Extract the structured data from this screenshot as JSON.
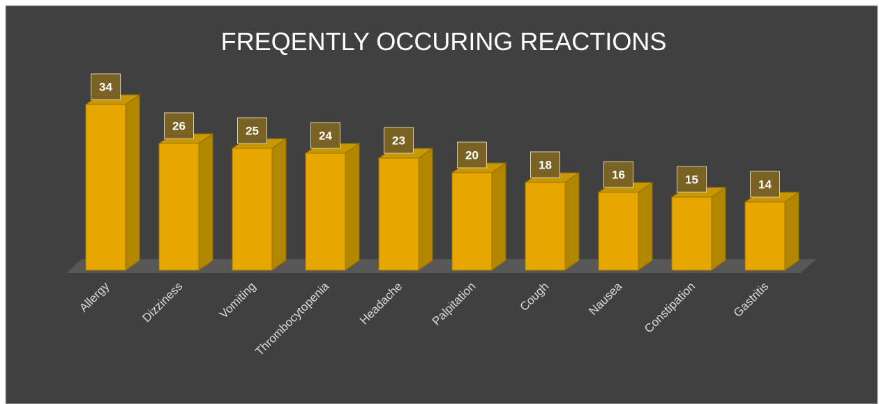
{
  "chart_data": {
    "type": "bar3d",
    "title": "FREQENTLY OCCURING REACTIONS",
    "categories": [
      "Allergy",
      "Dizziness",
      "Vomiting",
      "Thrombocytopenia",
      "Headache",
      "Palpitation",
      "Cough",
      "Nausea",
      "Constipation",
      "Gastritis"
    ],
    "values": [
      34,
      26,
      25,
      24,
      23,
      20,
      18,
      16,
      15,
      14
    ],
    "color": "#e6a800"
  }
}
